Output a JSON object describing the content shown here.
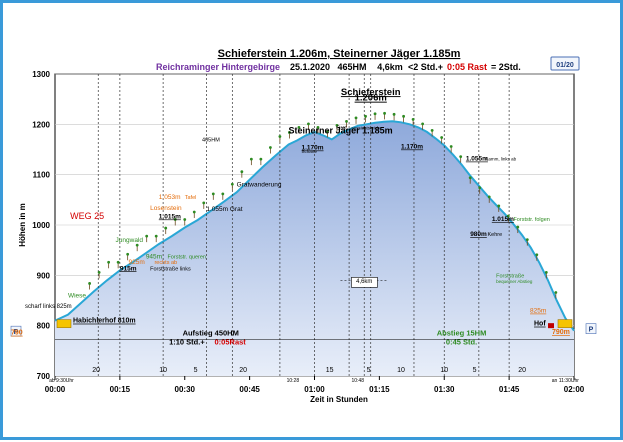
{
  "header": {
    "title": "Schieferstein 1.206m, Steinerner Jäger 1.185m",
    "region": "Reichraminger Hintergebirge",
    "date": "25.1.2020",
    "elevation_gain": "465HM",
    "distance": "4,6km",
    "time_part1": "<2 Std.+",
    "rest_part": "0:05 Rast",
    "time_part2": "= 2Std.",
    "page_badge": "01/20"
  },
  "colors": {
    "profile_fill_top": "#8ea9db",
    "profile_fill_bottom": "#e8eef9",
    "profile_line": "#2aa7d6",
    "region_purple": "#7030a0",
    "orange": "#e46c0a",
    "green": "#2e8b22",
    "red": "#d40000"
  },
  "chart_data": {
    "type": "area",
    "title": "Schieferstein 1.206m, Steinerner Jäger 1.185m",
    "xlabel": "Zeit in Stunden",
    "ylabel": "Höhen in m",
    "ylim": [
      700,
      1300
    ],
    "xlim_min": [
      0,
      120
    ],
    "x_ticks": [
      "00:00",
      "00:15",
      "00:30",
      "00:45",
      "01:00",
      "01:15",
      "01:30",
      "01:45",
      "02:00"
    ],
    "y_ticks": [
      "700",
      "800",
      "900",
      "1000",
      "1100",
      "1200",
      "1300"
    ],
    "grid": true,
    "profile": [
      [
        0,
        810
      ],
      [
        3,
        822
      ],
      [
        6,
        845
      ],
      [
        9,
        868
      ],
      [
        12,
        890
      ],
      [
        15,
        910
      ],
      [
        18,
        926
      ],
      [
        21,
        944
      ],
      [
        24,
        962
      ],
      [
        27,
        978
      ],
      [
        30,
        995
      ],
      [
        33,
        1010
      ],
      [
        36,
        1028
      ],
      [
        39,
        1046
      ],
      [
        42,
        1065
      ],
      [
        45,
        1090
      ],
      [
        48,
        1115
      ],
      [
        51,
        1138
      ],
      [
        54,
        1160
      ],
      [
        56,
        1168
      ],
      [
        58,
        1178
      ],
      [
        60,
        1185
      ],
      [
        62,
        1178
      ],
      [
        64,
        1170
      ],
      [
        66,
        1182
      ],
      [
        68,
        1190
      ],
      [
        70,
        1197
      ],
      [
        72,
        1200
      ],
      [
        74,
        1203
      ],
      [
        76,
        1205
      ],
      [
        78,
        1206
      ],
      [
        80,
        1204
      ],
      [
        82,
        1200
      ],
      [
        84,
        1194
      ],
      [
        86,
        1185
      ],
      [
        88,
        1172
      ],
      [
        90,
        1158
      ],
      [
        92,
        1140
      ],
      [
        94,
        1120
      ],
      [
        96,
        1098
      ],
      [
        98,
        1078
      ],
      [
        100,
        1058
      ],
      [
        102,
        1040
      ],
      [
        104,
        1022
      ],
      [
        106,
        1002
      ],
      [
        108,
        980
      ],
      [
        110,
        955
      ],
      [
        112,
        925
      ],
      [
        114,
        890
      ],
      [
        116,
        850
      ],
      [
        118,
        815
      ],
      [
        120,
        790
      ]
    ],
    "vlines": [
      10,
      15,
      25,
      35,
      41,
      52,
      60,
      68,
      73,
      83,
      90,
      98,
      105
    ],
    "segment_minutes": [
      {
        "x": 9.5,
        "label": "20"
      },
      {
        "x": 25,
        "label": "10"
      },
      {
        "x": 32.5,
        "label": "5"
      },
      {
        "x": 43.5,
        "label": "20"
      },
      {
        "x": 63.5,
        "label": "15"
      },
      {
        "x": 72.5,
        "label": "5"
      },
      {
        "x": 80,
        "label": "10"
      },
      {
        "x": 90,
        "label": "10"
      },
      {
        "x": 97,
        "label": "5"
      },
      {
        "x": 108,
        "label": "20"
      }
    ],
    "bottom_times": [
      {
        "x": 1.5,
        "label": "ab 9:30Uhr"
      },
      {
        "x": 55,
        "label": "10:28"
      },
      {
        "x": 70,
        "label": "10:48"
      },
      {
        "x": 118,
        "label": "an 11:30Uhr"
      }
    ]
  },
  "annotations": {
    "left_start": {
      "label": "Habichlerhof 810m",
      "sub": "scharf links 825m",
      "ybox": "790"
    },
    "right_end": {
      "label": "Hof",
      "sub": "825m",
      "ybox": "790m"
    },
    "p_left": "P",
    "p_right": "P",
    "weg": "WEG 25",
    "labels": [
      {
        "x": 3,
        "y": 856,
        "text": "Wiese",
        "color": "green"
      },
      {
        "x": 15,
        "y": 910,
        "text": "915m",
        "color": "black",
        "bold": true
      },
      {
        "x": 22,
        "y": 910,
        "text": "Forststraße links",
        "color": "black",
        "small": true
      },
      {
        "x": 17,
        "y": 923,
        "text": "925m",
        "color": "orange"
      },
      {
        "x": 23,
        "y": 923,
        "text": "rechts ab",
        "color": "orange",
        "small": true
      },
      {
        "x": 21,
        "y": 933,
        "text": "945m",
        "color": "green"
      },
      {
        "x": 26,
        "y": 933,
        "text": "Forststr. queren",
        "color": "green",
        "small": true
      },
      {
        "x": 14,
        "y": 966,
        "text": "Jungwald",
        "color": "green"
      },
      {
        "x": 24,
        "y": 1013,
        "text": "1.015m",
        "color": "black",
        "bold": true
      },
      {
        "x": 22,
        "y": 1030,
        "text": "Losenstein",
        "color": "orange"
      },
      {
        "x": 24,
        "y": 1052,
        "text": "1.053m",
        "color": "orange"
      },
      {
        "x": 30,
        "y": 1052,
        "text": "Tafel",
        "color": "orange",
        "small": true
      },
      {
        "x": 35,
        "y": 1028,
        "text": "1.055m Grat",
        "color": "black"
      },
      {
        "x": 42,
        "y": 1076,
        "text": "Gratwanderung",
        "color": "black"
      },
      {
        "x": 54,
        "y": 1182,
        "text": "Steinerner Jäger 1.185m",
        "color": "black",
        "bigbold": true
      },
      {
        "x": 34,
        "y": 1166,
        "text": "405HM",
        "color": "black",
        "small": true
      },
      {
        "x": 57,
        "y": 1150,
        "text": "1.170m",
        "color": "black",
        "bold": true
      },
      {
        "x": 57,
        "y": 1143,
        "text": "Scharte",
        "color": "black",
        "tiny": true
      },
      {
        "x": 65,
        "y": 1190,
        "text": "Grat",
        "color": "black",
        "small": true
      },
      {
        "x": 68.5,
        "y": 1190,
        "text": "aussichtsreich",
        "color": "black",
        "tiny": true
      },
      {
        "x": 80,
        "y": 1152,
        "text": "1.170m",
        "color": "black",
        "bold": true
      },
      {
        "x": 95,
        "y": 1128,
        "text": "1.055m",
        "color": "black",
        "bold": true
      },
      {
        "x": 99.5,
        "y": 1128,
        "text": "Kamm, links ab",
        "color": "black",
        "tiny": true
      },
      {
        "x": 101,
        "y": 1008,
        "text": "1.015m",
        "color": "black",
        "bold": true
      },
      {
        "x": 106,
        "y": 1008,
        "text": "Forststr. folgen",
        "color": "green",
        "small": true
      },
      {
        "x": 96,
        "y": 978,
        "text": "980m",
        "color": "black",
        "bold": true
      },
      {
        "x": 100,
        "y": 978,
        "text": "Kehre",
        "color": "black",
        "small": true
      },
      {
        "x": 102,
        "y": 896,
        "text": "Forststraße",
        "color": "green",
        "small": true
      },
      {
        "x": 102,
        "y": 885,
        "text": "bequemer Abstieg",
        "color": "green",
        "tiny": true
      }
    ],
    "peak_title": "Schieferstein",
    "peak_height": "1.206m",
    "distance_label": "4,6km",
    "ascent_title": "Aufstieg 450HM",
    "ascent_time": "1:10 Std.+",
    "ascent_rest": "0:05Rast",
    "descent_title": "Abstieg 15HM",
    "descent_time": "0:45 Std."
  }
}
